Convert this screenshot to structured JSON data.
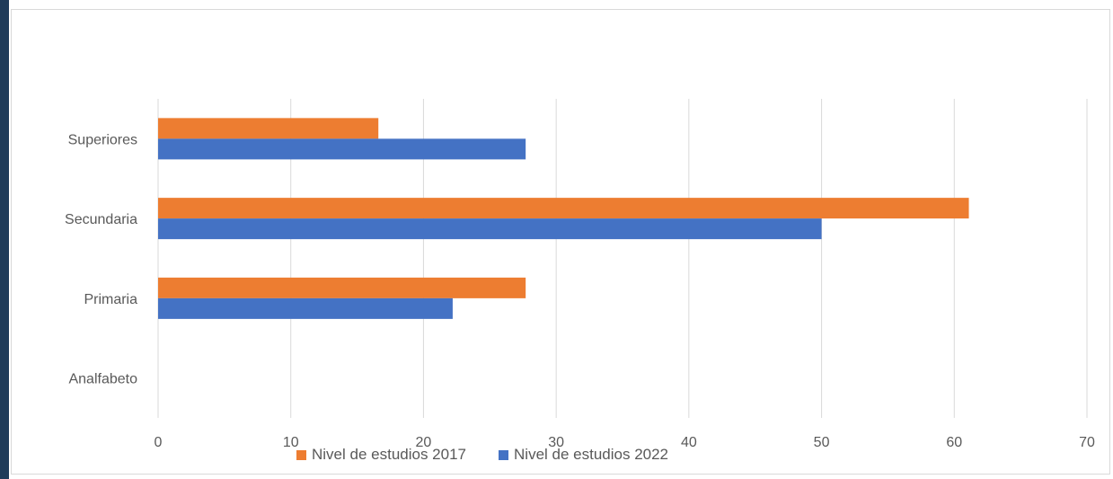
{
  "chart_data": {
    "type": "bar",
    "orientation": "horizontal",
    "categories": [
      "Analfabeto",
      "Primaria",
      "Secundaria",
      "Superiores"
    ],
    "series": [
      {
        "name": "Nivel de estudios 2017",
        "color": "#ed7d31",
        "values": [
          0,
          27.7,
          61.1,
          16.6
        ]
      },
      {
        "name": "Nivel de estudios 2022",
        "color": "#4472c4",
        "values": [
          0,
          22.2,
          50.0,
          27.7
        ]
      }
    ],
    "xlim": [
      0,
      70
    ],
    "xticks": [
      0,
      10,
      20,
      30,
      40,
      50,
      60,
      70
    ],
    "grid": "vertical",
    "legend": "bottom"
  }
}
